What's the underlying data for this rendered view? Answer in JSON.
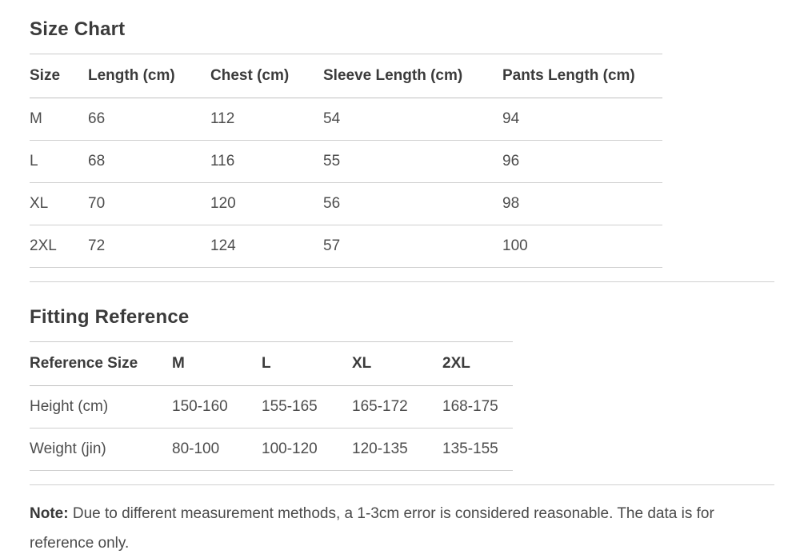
{
  "size_chart": {
    "title": "Size Chart",
    "columns": [
      "Size",
      "Length (cm)",
      "Chest (cm)",
      "Sleeve Length (cm)",
      "Pants Length (cm)"
    ],
    "rows": [
      [
        "M",
        "66",
        "112",
        "54",
        "94"
      ],
      [
        "L",
        "68",
        "116",
        "55",
        "96"
      ],
      [
        "XL",
        "70",
        "120",
        "56",
        "98"
      ],
      [
        "2XL",
        "72",
        "124",
        "57",
        "100"
      ]
    ]
  },
  "fitting_reference": {
    "title": "Fitting Reference",
    "columns": [
      "Reference Size",
      "M",
      "L",
      "XL",
      "2XL"
    ],
    "rows": [
      [
        "Height (cm)",
        "150-160",
        "155-165",
        "165-172",
        "168-175"
      ],
      [
        "Weight (jin)",
        "80-100",
        "100-120",
        "120-135",
        "135-155"
      ]
    ]
  },
  "note": {
    "label": "Note:",
    "text": " Due to different measurement methods, a 1-3cm error is considered reasonable. The data is for reference only."
  },
  "colors": {
    "heading_text": "#3b3b3b",
    "body_text": "#4d4d4d",
    "border": "#cfcfcf",
    "background": "#ffffff"
  }
}
